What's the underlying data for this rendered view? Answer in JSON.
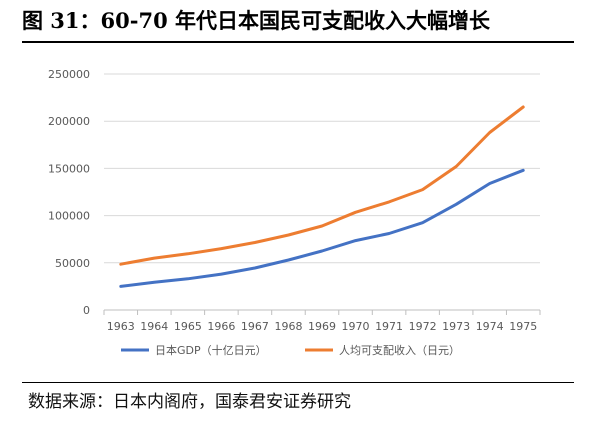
{
  "title": "图 31：60-70 年代日本国民可支配收入大幅增长",
  "source": "数据来源：日本内阁府，国泰君安证券研究",
  "chart_data": {
    "type": "line",
    "categories": [
      "1963",
      "1964",
      "1965",
      "1966",
      "1967",
      "1968",
      "1969",
      "1970",
      "1971",
      "1972",
      "1973",
      "1974",
      "1975"
    ],
    "ylim": [
      0,
      250000
    ],
    "yticks": [
      0,
      50000,
      100000,
      150000,
      200000,
      250000
    ],
    "grid": true,
    "legend_position": "bottom",
    "series": [
      {
        "name": "日本GDP（十亿日元）",
        "color": "#4472c4",
        "values": [
          25000,
          29500,
          33000,
          38000,
          44500,
          53000,
          62500,
          73500,
          81000,
          92500,
          112000,
          134000,
          148000
        ]
      },
      {
        "name": "人均可支配收入（日元）",
        "color": "#ed7d31",
        "values": [
          48500,
          55000,
          59500,
          65000,
          71500,
          79500,
          89000,
          103500,
          114500,
          127500,
          152000,
          188000,
          215000
        ]
      }
    ]
  }
}
